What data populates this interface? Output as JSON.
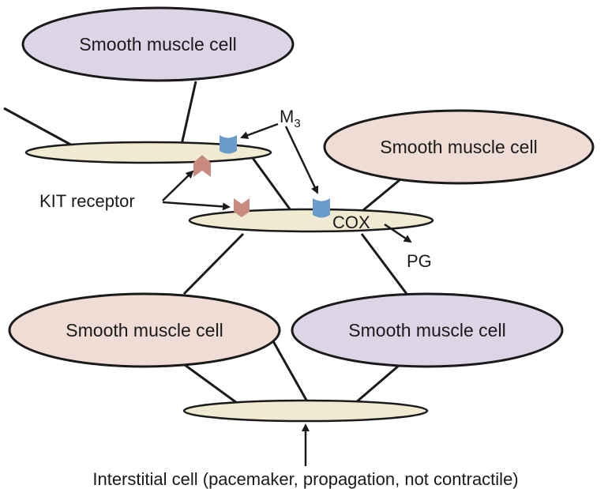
{
  "labels": {
    "smc_top": "Smooth muscle cell",
    "smc_right": "Smooth muscle cell",
    "smc_bottom_left": "Smooth muscle cell",
    "smc_bottom_right": "Smooth muscle cell",
    "m3_base": "M",
    "m3_sub": "3",
    "kit_receptor": "KIT receptor",
    "cox": "COX",
    "pg": "PG",
    "caption": "Interstitial cell (pacemaker, propagation, not contractile)"
  },
  "colors": {
    "smc_purple": "#ddd4e6",
    "smc_pink": "#eedcd5",
    "interstitial": "#f1ead2",
    "m3_receptor": "#6a9bcb",
    "kit_receptor": "#c98b7e",
    "stroke": "#1a1a1a"
  }
}
